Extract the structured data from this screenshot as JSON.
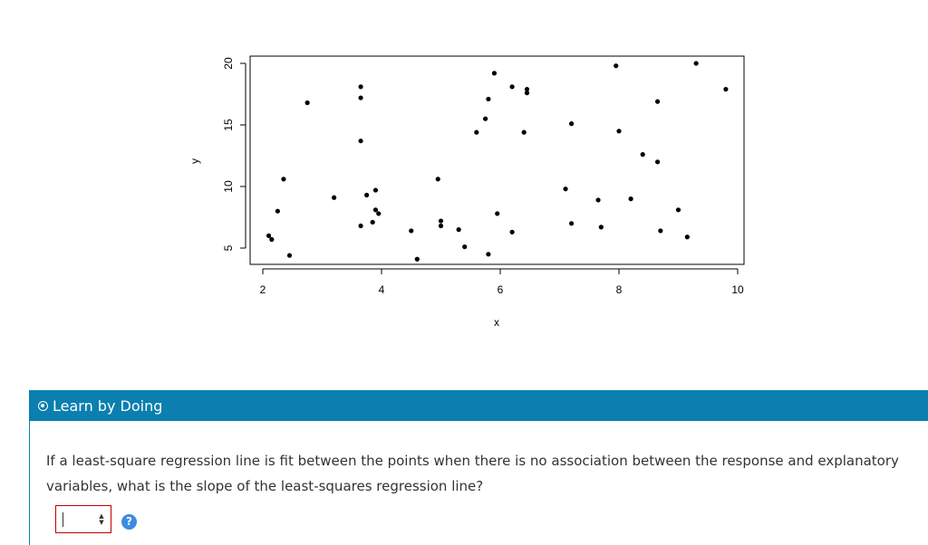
{
  "chart_data": {
    "type": "scatter",
    "xlabel": "x",
    "ylabel": "y",
    "xlim": [
      1.8,
      10.2
    ],
    "ylim": [
      3.5,
      20.5
    ],
    "xticks": [
      2,
      4,
      6,
      8,
      10
    ],
    "yticks": [
      5,
      10,
      15,
      20
    ],
    "grid": false,
    "points": [
      {
        "x": 2.1,
        "y": 6.0
      },
      {
        "x": 2.15,
        "y": 5.7
      },
      {
        "x": 2.25,
        "y": 8.0
      },
      {
        "x": 2.35,
        "y": 10.6
      },
      {
        "x": 2.45,
        "y": 4.4
      },
      {
        "x": 2.75,
        "y": 16.8
      },
      {
        "x": 3.2,
        "y": 9.1
      },
      {
        "x": 3.65,
        "y": 18.1
      },
      {
        "x": 3.65,
        "y": 17.2
      },
      {
        "x": 3.65,
        "y": 13.7
      },
      {
        "x": 3.65,
        "y": 6.8
      },
      {
        "x": 3.75,
        "y": 9.3
      },
      {
        "x": 3.85,
        "y": 7.1
      },
      {
        "x": 3.9,
        "y": 9.7
      },
      {
        "x": 3.9,
        "y": 8.1
      },
      {
        "x": 3.95,
        "y": 7.8
      },
      {
        "x": 4.5,
        "y": 6.4
      },
      {
        "x": 4.6,
        "y": 4.1
      },
      {
        "x": 4.95,
        "y": 10.6
      },
      {
        "x": 5.0,
        "y": 7.2
      },
      {
        "x": 5.0,
        "y": 6.8
      },
      {
        "x": 5.3,
        "y": 6.5
      },
      {
        "x": 5.4,
        "y": 5.1
      },
      {
        "x": 5.6,
        "y": 14.4
      },
      {
        "x": 5.75,
        "y": 15.5
      },
      {
        "x": 5.8,
        "y": 17.1
      },
      {
        "x": 5.8,
        "y": 4.5
      },
      {
        "x": 5.9,
        "y": 19.2
      },
      {
        "x": 5.95,
        "y": 7.8
      },
      {
        "x": 6.2,
        "y": 18.1
      },
      {
        "x": 6.2,
        "y": 6.3
      },
      {
        "x": 6.4,
        "y": 14.4
      },
      {
        "x": 6.45,
        "y": 17.9
      },
      {
        "x": 6.45,
        "y": 17.6
      },
      {
        "x": 7.1,
        "y": 9.8
      },
      {
        "x": 7.2,
        "y": 15.1
      },
      {
        "x": 7.2,
        "y": 7.0
      },
      {
        "x": 7.65,
        "y": 8.9
      },
      {
        "x": 7.7,
        "y": 6.7
      },
      {
        "x": 7.95,
        "y": 19.8
      },
      {
        "x": 8.0,
        "y": 14.5
      },
      {
        "x": 8.2,
        "y": 9.0
      },
      {
        "x": 8.4,
        "y": 12.6
      },
      {
        "x": 8.65,
        "y": 16.9
      },
      {
        "x": 8.65,
        "y": 12.0
      },
      {
        "x": 8.7,
        "y": 6.4
      },
      {
        "x": 9.0,
        "y": 8.1
      },
      {
        "x": 9.15,
        "y": 5.9
      },
      {
        "x": 9.3,
        "y": 20.0
      },
      {
        "x": 9.8,
        "y": 17.9
      }
    ]
  },
  "banner": {
    "title": "Learn by Doing",
    "icon": "radio-bullet-icon",
    "color": "#0a7fb0"
  },
  "question": {
    "text": "If a least-square regression line is fit between the points when there is no association between the response and explanatory variables, what is the slope of the least-squares regression line?",
    "answer_value": "",
    "help_icon": "question-mark-icon"
  }
}
